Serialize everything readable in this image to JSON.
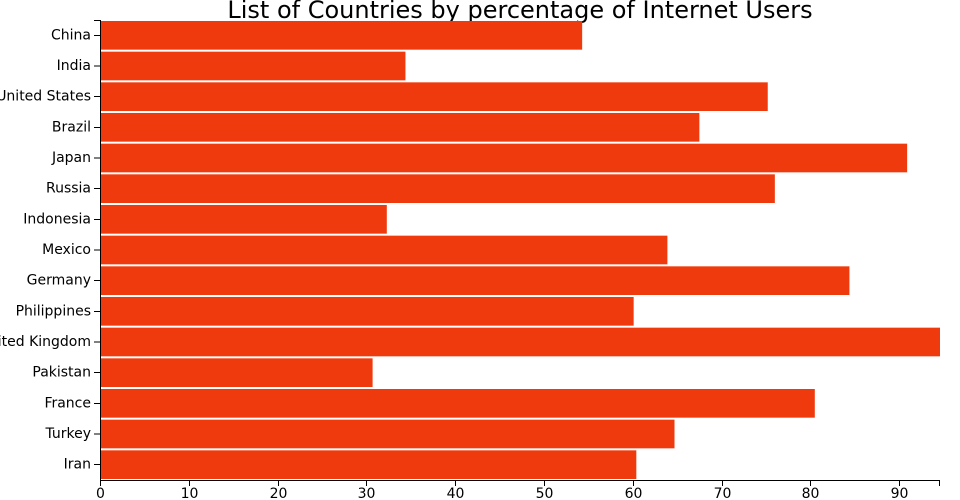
{
  "chart_data": {
    "type": "bar",
    "orientation": "horizontal",
    "title": "List of Countries by percentage of Internet Users",
    "xlabel": "",
    "ylabel": "",
    "categories": [
      "China",
      "India",
      "United States",
      "Brazil",
      "Japan",
      "Russia",
      "Indonesia",
      "Mexico",
      "Germany",
      "Philippines",
      "United Kingdom",
      "Pakistan",
      "France",
      "Turkey",
      "Iran"
    ],
    "values": [
      54.3,
      34.4,
      75.2,
      67.5,
      90.9,
      76.0,
      32.3,
      63.9,
      84.4,
      60.1,
      94.6,
      30.7,
      80.5,
      64.7,
      60.4
    ],
    "xlim": [
      0,
      94.6
    ],
    "x_ticks": [
      0,
      10,
      20,
      30,
      40,
      50,
      60,
      70,
      80,
      90
    ],
    "bar_color": "#ee3a0c",
    "grid": false,
    "legend": "none"
  }
}
